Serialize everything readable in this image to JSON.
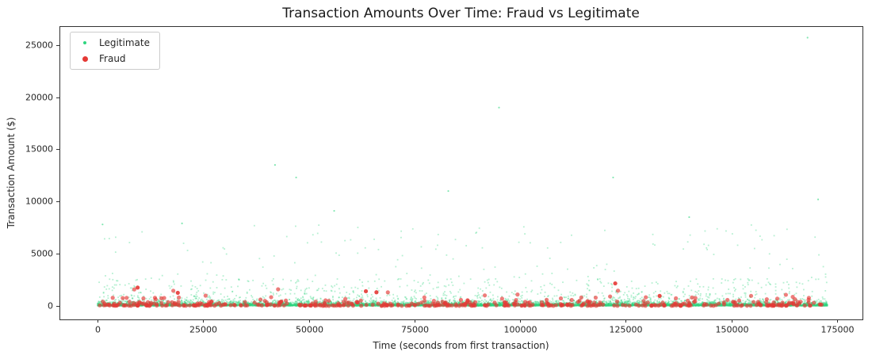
{
  "chart_data": {
    "type": "scatter",
    "title": "Transaction Amounts Over Time: Fraud vs Legitimate",
    "xlabel": "Time (seconds from first transaction)",
    "ylabel": "Transaction Amount ($)",
    "xlim": [
      -9000,
      181000
    ],
    "ylim": [
      -1300,
      26800
    ],
    "xticks": [
      0,
      25000,
      50000,
      75000,
      100000,
      125000,
      150000,
      175000
    ],
    "yticks": [
      0,
      5000,
      10000,
      15000,
      20000,
      25000
    ],
    "grid": false,
    "legend": {
      "position": "upper-left",
      "entries": [
        {
          "label": "Legitimate",
          "color": "#2fd57f",
          "marker_px": 4
        },
        {
          "label": "Fraud",
          "color": "#e53935",
          "marker_px": 7
        }
      ]
    },
    "seed": 42,
    "series": [
      {
        "name": "Legitimate",
        "color": "#2fd57f",
        "alpha": 0.35,
        "marker_radius": 0.9,
        "n_points": 12000,
        "x_range": [
          0,
          172700
        ],
        "amount_model": {
          "mix": [
            {
              "w": 0.86,
              "type": "exp",
              "scale": 110
            },
            {
              "w": 0.1,
              "type": "exp",
              "scale": 430
            },
            {
              "w": 0.03,
              "type": "uniform",
              "min": 800,
              "max": 2600
            },
            {
              "w": 0.01,
              "type": "uniform",
              "min": 2600,
              "max": 7800
            }
          ],
          "clamp_max": 8200
        },
        "outliers": [
          [
            1200,
            7800
          ],
          [
            20000,
            7900
          ],
          [
            42000,
            13500
          ],
          [
            47000,
            12300
          ],
          [
            56000,
            9100
          ],
          [
            83000,
            11000
          ],
          [
            95000,
            19000
          ],
          [
            122000,
            12300
          ],
          [
            140000,
            8500
          ],
          [
            168000,
            25700
          ],
          [
            170500,
            10200
          ]
        ]
      },
      {
        "name": "Fraud",
        "color": "#e53935",
        "alpha": 0.65,
        "marker_radius": 2.6,
        "n_points": 470,
        "x_range": [
          0,
          172000
        ],
        "amount_model": {
          "mix": [
            {
              "w": 0.55,
              "type": "exp",
              "scale": 60
            },
            {
              "w": 0.3,
              "type": "uniform",
              "min": 40,
              "max": 400
            },
            {
              "w": 0.13,
              "type": "uniform",
              "min": 300,
              "max": 900
            },
            {
              "w": 0.02,
              "type": "uniform",
              "min": 900,
              "max": 1700
            }
          ],
          "clamp_max": 1800
        },
        "outliers": [
          [
            9500,
            1750
          ],
          [
            19000,
            1250
          ],
          [
            63500,
            1400
          ],
          [
            66000,
            1300
          ],
          [
            122500,
            2150
          ],
          [
            133000,
            950
          ]
        ]
      }
    ]
  }
}
